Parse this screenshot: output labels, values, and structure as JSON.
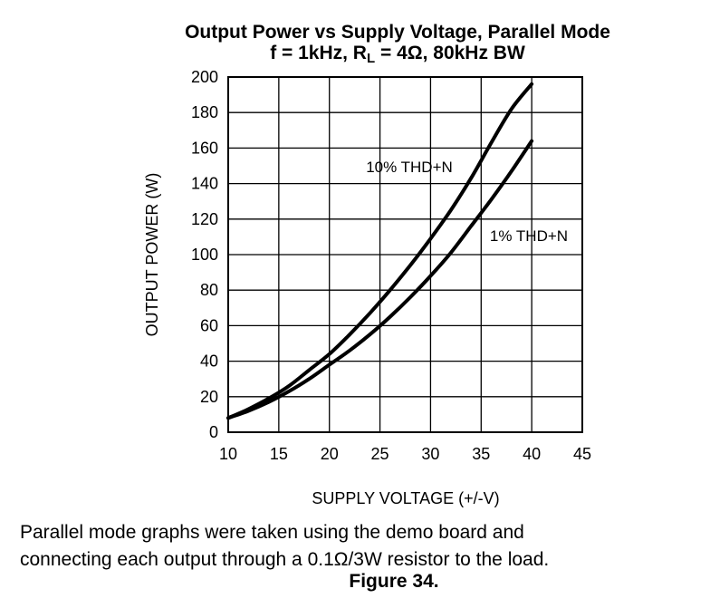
{
  "chart_data": {
    "type": "line",
    "title": "Output Power vs Supply Voltage, Parallel Mode",
    "subtitle": {
      "prefix": "f = 1kHz, R",
      "subscript": "L",
      "suffix": " = 4Ω, 80kHz BW"
    },
    "xlabel": "SUPPLY VOLTAGE (+/-V)",
    "ylabel": "OUTPUT POWER (W)",
    "xlim": [
      10,
      45
    ],
    "ylim": [
      0,
      200
    ],
    "x_ticks": [
      "10",
      "15",
      "20",
      "25",
      "30",
      "35",
      "40",
      "45"
    ],
    "y_ticks": [
      "0",
      "20",
      "40",
      "60",
      "80",
      "100",
      "120",
      "140",
      "160",
      "180",
      "200"
    ],
    "grid": true,
    "series": [
      {
        "name": "10% THD+N",
        "x": [
          10,
          12,
          14,
          16,
          18,
          20,
          22,
          24,
          26,
          28,
          30,
          32,
          34,
          36,
          38,
          40
        ],
        "y": [
          8,
          13,
          19,
          26,
          35,
          44,
          55,
          67,
          80,
          94,
          109,
          125,
          143,
          163,
          182,
          196
        ]
      },
      {
        "name": "1% THD+N",
        "x": [
          10,
          12,
          14,
          16,
          18,
          20,
          22,
          24,
          26,
          28,
          30,
          32,
          34,
          36,
          38,
          40
        ],
        "y": [
          8,
          12,
          17,
          23,
          30,
          38,
          46,
          55,
          65,
          76,
          88,
          101,
          116,
          131,
          147,
          164
        ]
      }
    ]
  },
  "caption": {
    "line1": "Parallel mode graphs were taken using the demo board and",
    "line2": "connecting each output through a 0.1Ω/3W resistor to the load.",
    "figure": "Figure 34."
  }
}
